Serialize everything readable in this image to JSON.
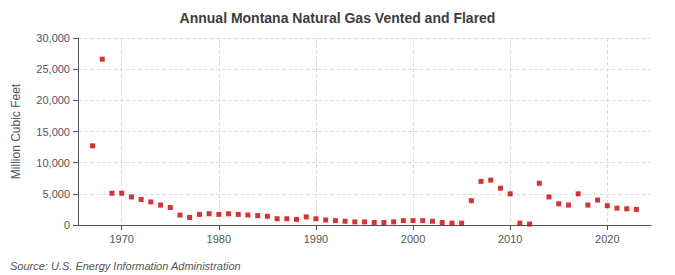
{
  "chart_data": {
    "type": "scatter",
    "title": "Annual Montana Natural Gas Vented and Flared",
    "ylabel": "Million Cubic Feet",
    "annotations": [
      "Source: U.S. Energy Information Administration"
    ],
    "x": [
      1967,
      1968,
      1969,
      1970,
      1971,
      1972,
      1973,
      1974,
      1975,
      1976,
      1977,
      1978,
      1979,
      1980,
      1981,
      1982,
      1983,
      1984,
      1985,
      1986,
      1987,
      1988,
      1989,
      1990,
      1991,
      1992,
      1993,
      1994,
      1995,
      1996,
      1997,
      1998,
      1999,
      2000,
      2001,
      2002,
      2003,
      2004,
      2005,
      2006,
      2007,
      2008,
      2009,
      2010,
      2011,
      2012,
      2013,
      2014,
      2015,
      2016,
      2017,
      2018,
      2019,
      2020,
      2021,
      2022,
      2023
    ],
    "values": [
      12700,
      26600,
      5100,
      5100,
      4500,
      4100,
      3700,
      3200,
      2800,
      1600,
      1200,
      1700,
      1800,
      1700,
      1800,
      1700,
      1600,
      1500,
      1400,
      1000,
      1000,
      900,
      1300,
      1000,
      800,
      700,
      600,
      500,
      500,
      400,
      400,
      500,
      700,
      700,
      700,
      600,
      400,
      300,
      300,
      3900,
      7000,
      7200,
      5900,
      5000,
      300,
      150,
      6700,
      4500,
      3400,
      3200,
      5000,
      3200,
      4000,
      3100,
      2700,
      2600,
      2500
    ],
    "color": "#cc0000",
    "marker": "square",
    "xlim": [
      1965.5,
      2024.5
    ],
    "xticks": [
      1970,
      1980,
      1990,
      2000,
      2010,
      2020
    ],
    "ylim": [
      0,
      30000
    ],
    "yticks": [
      0,
      {
        "value": 5000,
        "label": "5,000"
      },
      {
        "value": 10000,
        "label": "10,000"
      },
      {
        "value": 15000,
        "label": "15,000"
      },
      {
        "value": 20000,
        "label": "20,000"
      },
      {
        "value": 25000,
        "label": "25,000"
      },
      {
        "value": 30000,
        "label": "30,000"
      }
    ],
    "grid": true
  }
}
